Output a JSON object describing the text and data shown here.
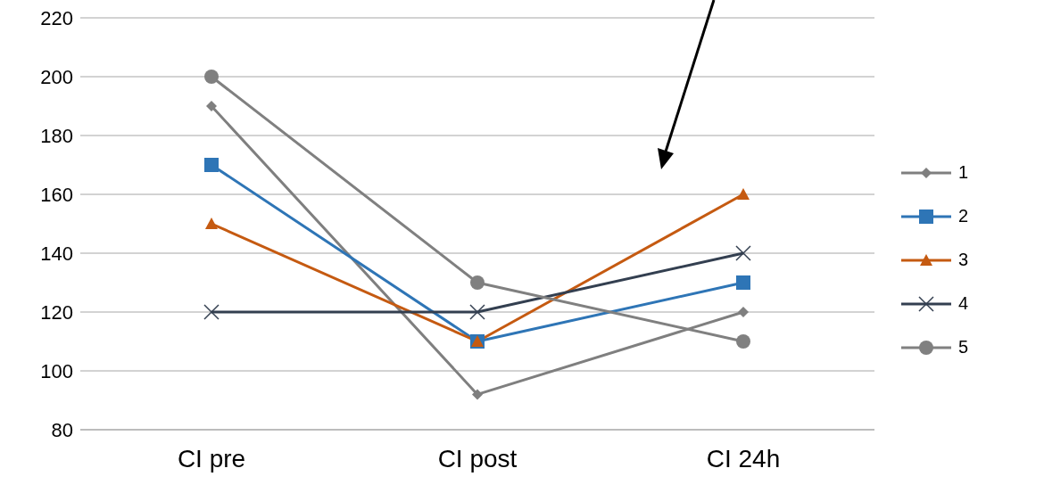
{
  "chart_data": {
    "type": "line",
    "categories": [
      "CI pre",
      "CI post",
      "CI 24h"
    ],
    "series": [
      {
        "name": "1",
        "color": "#7f7f7f",
        "marker": "diamond",
        "values": [
          190,
          92,
          120
        ]
      },
      {
        "name": "2",
        "color": "#2e75b6",
        "marker": "square",
        "values": [
          170,
          110,
          130
        ]
      },
      {
        "name": "3",
        "color": "#c55a11",
        "marker": "triangle",
        "values": [
          150,
          110,
          160
        ]
      },
      {
        "name": "4",
        "color": "#333f50",
        "marker": "cross",
        "values": [
          120,
          120,
          140
        ]
      },
      {
        "name": "5",
        "color": "#808080",
        "marker": "circle",
        "values": [
          200,
          130,
          110
        ]
      }
    ],
    "ylim": [
      80,
      220
    ],
    "yticks": [
      80,
      100,
      120,
      140,
      160,
      180,
      200,
      220
    ],
    "grid": "y",
    "legend": "right",
    "line_style": "solid"
  }
}
